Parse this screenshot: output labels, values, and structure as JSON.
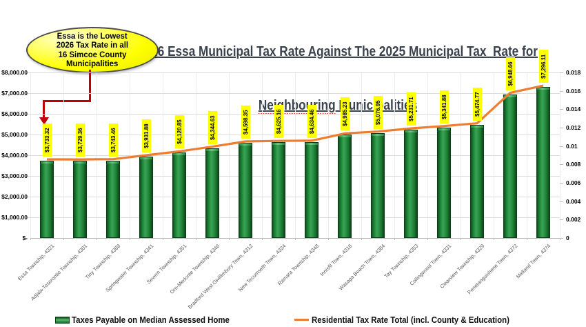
{
  "title": {
    "line1": "2026 Essa Municipal Tax Rate Against The 2025 Municipal Tax  Rate for",
    "line2_word1": "Neighbouring",
    "line2_rest": " Municipalities"
  },
  "callout": {
    "lines": [
      "Essa is the Lowest",
      "2026 Tax Rate in all",
      "16 Simcoe County",
      "Municipalities"
    ],
    "fill_color": "#FFFF00",
    "arrow_color": "#C00000"
  },
  "legend": {
    "bar_label": "Taxes Payable on Median Assessed Home",
    "line_label": "Residential Tax Rate Total (incl. County & Education)"
  },
  "chart_data": {
    "type": "bar",
    "subtype": "combo-bar-line-dual-axis",
    "title": "2026 Essa Municipal Tax Rate Against The 2025 Municipal Tax Rate for Neighbouring Municipalities",
    "categories": [
      "Essa Township, 4321",
      "Adjala-Tosorontio Township, 4301",
      "Tiny Township, 4368",
      "Springwater Township, 4341",
      "Severn Township, 4351",
      "Oro-Medonte Township, 4346",
      "Bradford West Gwillimbury Town, 4312",
      "New Tecumseth Town, 4324",
      "Ramara Township, 4348",
      "Innisfil Town, 4316",
      "Wasaga Beach Town, 4364",
      "Tay Township, 4353",
      "Collingwood Town, 4331",
      "Clearview Township, 4329",
      "Penetanguishene Town, 4372",
      "Midland Town, 4374"
    ],
    "series": [
      {
        "name": "Taxes Payable on Median Assessed Home",
        "type": "bar",
        "axis": "left",
        "color": "#1E7B34",
        "values": [
          3733.32,
          3729.36,
          3743.46,
          3931.88,
          4120.85,
          4344.63,
          4598.35,
          4625.16,
          4634.46,
          4985.23,
          5076.95,
          5231.71,
          5341.88,
          5474.77,
          6948.66,
          7296.11
        ],
        "labels": [
          "$3,733.32",
          "$3,729.36",
          "$3,743.46",
          "$3,931.88",
          "$4,120.85",
          "$4,344.63",
          "$4,598.35",
          "$4,625.16",
          "$4,634.46",
          "$4,985.23",
          "$5,076.95",
          "$5,231.71",
          "$5,341.88",
          "$5,474.77",
          "$6,948.66",
          "$7,296.11"
        ],
        "label_background": "#FFFF00"
      },
      {
        "name": "Residential Tax Rate Total (incl. County & Education)",
        "type": "line",
        "axis": "right",
        "color": "#ED7D31",
        "values": [
          0.00855,
          0.00854,
          0.00857,
          0.009,
          0.00942,
          0.00993,
          0.0105,
          0.01056,
          0.01058,
          0.01137,
          0.01157,
          0.01192,
          0.01217,
          0.01247,
          0.01578,
          0.01657
        ]
      }
    ],
    "left_axis": {
      "min": 0,
      "max": 8000,
      "ticks": [
        "$8,000.00",
        "$7,000.00",
        "$6,000.00",
        "$5,000.00",
        "$4,000.00",
        "$3,000.00",
        "$2,000.00",
        "$1,000.00",
        "$-"
      ]
    },
    "right_axis": {
      "min": 0,
      "max": 0.018,
      "ticks": [
        "0.018",
        "0.016",
        "0.014",
        "0.012",
        "0.01",
        "0.008",
        "0.006",
        "0.004",
        "0.002",
        "0"
      ]
    },
    "grid": true,
    "legend_position": "bottom"
  }
}
